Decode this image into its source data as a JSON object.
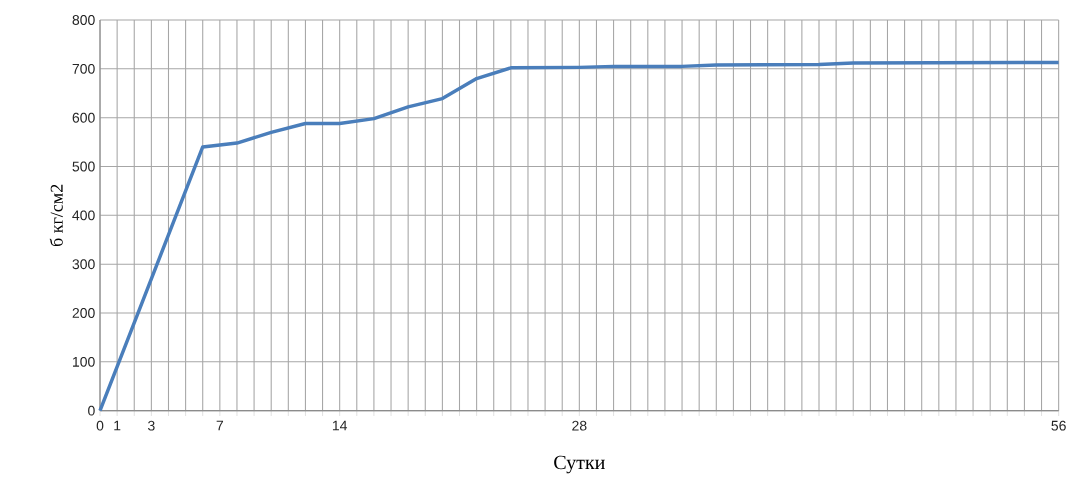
{
  "chart_data": {
    "type": "line",
    "xlabel": "Сутки",
    "ylabel": "б кг/см2",
    "x": [
      0,
      6,
      8,
      10,
      12,
      14,
      16,
      18,
      20,
      22,
      24,
      28,
      30,
      34,
      36,
      42,
      44,
      56
    ],
    "series": [
      {
        "color": "#4a7ebb",
        "values": [
          0,
          540,
          548,
          570,
          588,
          588,
          598,
          622,
          639,
          680,
          702,
          703,
          705,
          705,
          708,
          709,
          712,
          713
        ]
      }
    ],
    "xlim": [
      0,
      56
    ],
    "xticks": [
      0,
      1,
      {
        "value": 2,
        "label": null
      },
      3,
      {
        "value": 4,
        "label": null
      },
      {
        "value": 5,
        "label": null
      },
      {
        "value": 6,
        "label": null
      },
      7,
      {
        "value": 8,
        "label": null
      },
      {
        "value": 9,
        "label": null
      },
      {
        "value": 10,
        "label": null
      },
      {
        "value": 11,
        "label": null
      },
      {
        "value": 12,
        "label": null
      },
      {
        "value": 13,
        "label": null
      },
      14,
      {
        "value": 15,
        "label": null
      },
      {
        "value": 16,
        "label": null
      },
      {
        "value": 17,
        "label": null
      },
      {
        "value": 18,
        "label": null
      },
      {
        "value": 19,
        "label": null
      },
      {
        "value": 20,
        "label": null
      },
      {
        "value": 21,
        "label": null
      },
      {
        "value": 22,
        "label": null
      },
      {
        "value": 23,
        "label": null
      },
      {
        "value": 24,
        "label": null
      },
      {
        "value": 25,
        "label": null
      },
      {
        "value": 26,
        "label": null
      },
      {
        "value": 27,
        "label": null
      },
      28,
      {
        "value": 29,
        "label": null
      },
      {
        "value": 30,
        "label": null
      },
      {
        "value": 31,
        "label": null
      },
      {
        "value": 32,
        "label": null
      },
      {
        "value": 33,
        "label": null
      },
      {
        "value": 34,
        "label": null
      },
      {
        "value": 35,
        "label": null
      },
      {
        "value": 36,
        "label": null
      },
      {
        "value": 37,
        "label": null
      },
      {
        "value": 38,
        "label": null
      },
      {
        "value": 39,
        "label": null
      },
      {
        "value": 40,
        "label": null
      },
      {
        "value": 41,
        "label": null
      },
      {
        "value": 42,
        "label": null
      },
      {
        "value": 43,
        "label": null
      },
      {
        "value": 44,
        "label": null
      },
      {
        "value": 45,
        "label": null
      },
      {
        "value": 46,
        "label": null
      },
      {
        "value": 47,
        "label": null
      },
      {
        "value": 48,
        "label": null
      },
      {
        "value": 49,
        "label": null
      },
      {
        "value": 50,
        "label": null
      },
      {
        "value": 51,
        "label": null
      },
      {
        "value": 52,
        "label": null
      },
      {
        "value": 53,
        "label": null
      },
      {
        "value": 54,
        "label": null
      },
      {
        "value": 55,
        "label": null
      },
      56
    ],
    "ylim": [
      0,
      800
    ],
    "yticks": [
      0,
      100,
      200,
      300,
      400,
      500,
      600,
      700,
      800
    ],
    "grid": true,
    "marker": "none",
    "line_style": "solid"
  }
}
